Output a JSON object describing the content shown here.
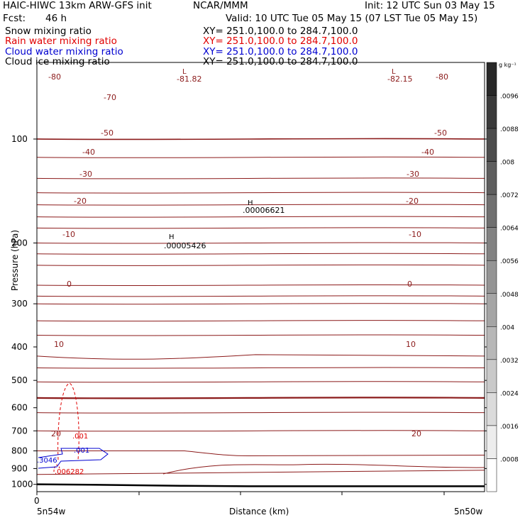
{
  "header": {
    "model_title": "HAIC-HIWC 13km ARW-GFS init",
    "org": "NCAR/MMM",
    "init_time": "Init: 12 UTC Sun 03 May 15",
    "forecast_label": "Fcst:",
    "forecast_hours": "46 h",
    "valid_time": "Valid: 10 UTC Tue 05 May 15 (07 LST Tue 05 May 15)"
  },
  "fields": [
    {
      "name": "Snow mixing ratio",
      "xsec": "XY= 251.0,100.0 to 284.7,100.0",
      "color": "#000000"
    },
    {
      "name": "Rain water mixing ratio",
      "xsec": "XY= 251.0,100.0 to 284.7,100.0",
      "color": "#e00000"
    },
    {
      "name": "Cloud water mixing ratio",
      "xsec": "XY= 251.0,100.0 to 284.7,100.0",
      "color": "#0000d0"
    },
    {
      "name": "Cloud ice mixing ratio",
      "xsec": "XY= 251.0,100.0 to 284.7,100.0",
      "color": "#000000"
    }
  ],
  "chart_data": {
    "type": "line",
    "ylabel": "Pressure (hPa)",
    "xlabel": "Distance (km)",
    "x_tick_labels": [
      "0",
      "5n54w",
      "5n50w"
    ],
    "y_ticks": [
      100,
      200,
      300,
      400,
      500,
      600,
      700,
      800,
      900,
      1000
    ],
    "ylim": [
      1050,
      60
    ],
    "y_scale": "log",
    "grid": false,
    "isotherm_labels": {
      "series_unit": "temperature contours",
      "values": [
        -80,
        -70,
        -50,
        -40,
        -30,
        -20,
        -10,
        0,
        10,
        20
      ],
      "freezing_level": 0
    },
    "extrema": [
      {
        "type": "L",
        "value": "-81.82"
      },
      {
        "type": "L",
        "value": "-82.15"
      },
      {
        "type": "H",
        "value": ".00006621"
      },
      {
        "type": "H",
        "value": ".00005426"
      }
    ],
    "rain_contour_labels": [
      ".001",
      ".006282"
    ],
    "cloud_water_labels": [
      ".001",
      ".3046"
    ],
    "terrain_pressure_hPa": [
      1000,
      1003,
      1010,
      1013,
      1013
    ],
    "colorbar": {
      "unit": "g kg⁻¹",
      "labels": [
        ".0096",
        ".0088",
        ".008",
        ".0072",
        ".0064",
        ".0056",
        ".0048",
        ".004",
        ".0032",
        ".0024",
        ".0016",
        ".0008"
      ]
    }
  }
}
